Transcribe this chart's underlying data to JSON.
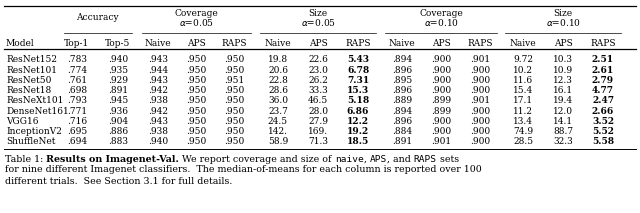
{
  "sub_headers": [
    "Top-1",
    "Top-5",
    "Naive",
    "APS",
    "RAPS",
    "Naive",
    "APS",
    "RAPS",
    "Naive",
    "APS",
    "RAPS",
    "Naive",
    "APS",
    "RAPS"
  ],
  "models": [
    "ResNet152",
    "ResNet101",
    "ResNet50",
    "ResNet18",
    "ResNeXt101",
    "DenseNet161",
    "VGG16",
    "InceptionV2",
    "ShuffleNet"
  ],
  "data": [
    [
      ".783",
      ".940",
      ".943",
      ".950",
      ".950",
      "19.8",
      "22.6",
      "5.43",
      ".894",
      ".900",
      ".901",
      "9.72",
      "10.3",
      "2.51"
    ],
    [
      ".774",
      ".935",
      ".944",
      ".950",
      ".950",
      "20.6",
      "23.0",
      "6.78",
      ".896",
      ".900",
      ".900",
      "10.2",
      "10.9",
      "2.61"
    ],
    [
      ".761",
      ".929",
      ".943",
      ".950",
      ".951",
      "22.8",
      "26.2",
      "7.31",
      ".895",
      ".900",
      ".900",
      "11.6",
      "12.3",
      "2.79"
    ],
    [
      ".698",
      ".891",
      ".942",
      ".950",
      ".950",
      "28.6",
      "33.3",
      "15.3",
      ".896",
      ".900",
      ".900",
      "15.4",
      "16.1",
      "4.77"
    ],
    [
      ".793",
      ".945",
      ".938",
      ".950",
      ".950",
      "36.0",
      "46.5",
      "5.18",
      ".889",
      ".899",
      ".901",
      "17.1",
      "19.4",
      "2.47"
    ],
    [
      ".771",
      ".936",
      ".942",
      ".950",
      ".950",
      "23.7",
      "28.0",
      "6.86",
      ".894",
      ".899",
      ".900",
      "11.2",
      "12.0",
      "2.66"
    ],
    [
      ".716",
      ".904",
      ".943",
      ".950",
      ".950",
      "24.5",
      "27.9",
      "12.2",
      ".896",
      ".900",
      ".900",
      "13.4",
      "14.1",
      "3.52"
    ],
    [
      ".695",
      ".886",
      ".938",
      ".950",
      ".950",
      "142.",
      "169.",
      "19.2",
      ".884",
      ".900",
      ".900",
      "74.9",
      "88.7",
      "5.52"
    ],
    [
      ".694",
      ".883",
      ".940",
      ".950",
      ".950",
      "58.9",
      "71.3",
      "18.5",
      ".891",
      ".901",
      ".900",
      "28.5",
      "32.3",
      "5.58"
    ]
  ],
  "bold_cols": [
    7,
    13
  ],
  "fig_width": 6.4,
  "fig_height": 2.13,
  "dpi": 100
}
